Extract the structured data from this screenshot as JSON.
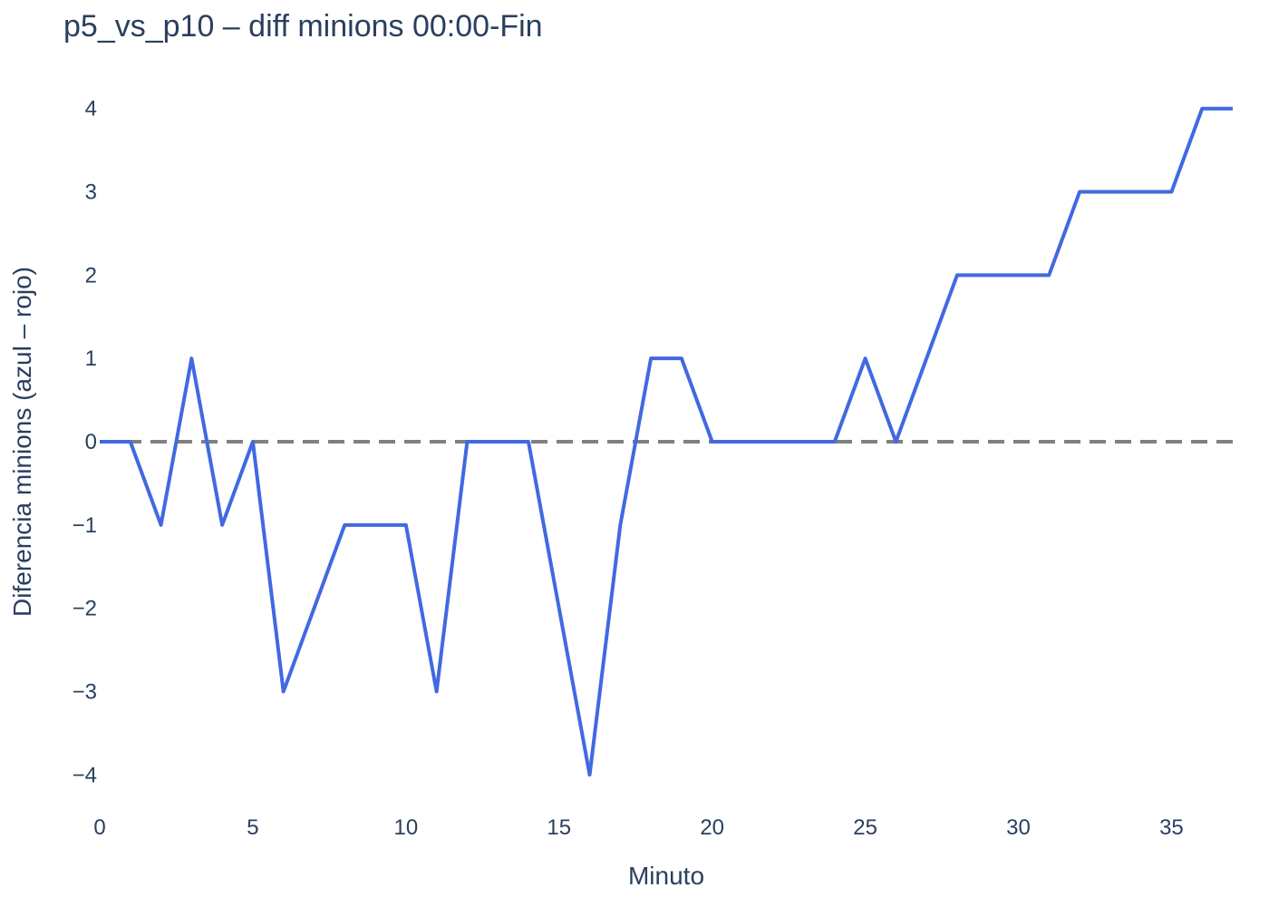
{
  "chart_data": {
    "type": "line",
    "title": "p5_vs_p10 – diff minions 00:00-Fin",
    "xlabel": "Minuto",
    "ylabel": "Diferencia minions (azul – rojo)",
    "xlim": [
      0,
      37
    ],
    "ylim": [
      -4.4,
      4.4
    ],
    "xticks": [
      0,
      5,
      10,
      15,
      20,
      25,
      30,
      35
    ],
    "yticks": [
      4,
      3,
      2,
      1,
      0,
      -1,
      -2,
      -3,
      -4
    ],
    "ytick_labels": [
      "4",
      "3",
      "2",
      "1",
      "0",
      "−1",
      "−2",
      "−3",
      "−4"
    ],
    "grid": false,
    "series": [
      {
        "color": "#4169e1",
        "x": [
          0,
          1,
          2,
          3,
          4,
          5,
          6,
          7,
          8,
          9,
          10,
          11,
          12,
          13,
          14,
          15,
          16,
          17,
          18,
          19,
          20,
          21,
          22,
          23,
          24,
          25,
          26,
          27,
          28,
          29,
          30,
          31,
          32,
          33,
          34,
          35,
          36,
          37
        ],
        "y": [
          0,
          0,
          -1,
          1,
          -1,
          0,
          -3,
          -2,
          -1,
          -1,
          -1,
          -3,
          0,
          0,
          0,
          -2,
          -4,
          -1,
          1,
          1,
          0,
          0,
          0,
          0,
          0,
          1,
          0,
          1,
          2,
          2,
          2,
          2,
          3,
          3,
          3,
          3,
          4,
          4
        ]
      }
    ],
    "reference_line": {
      "y": 0,
      "style": "dashed",
      "color": "#808080"
    }
  }
}
